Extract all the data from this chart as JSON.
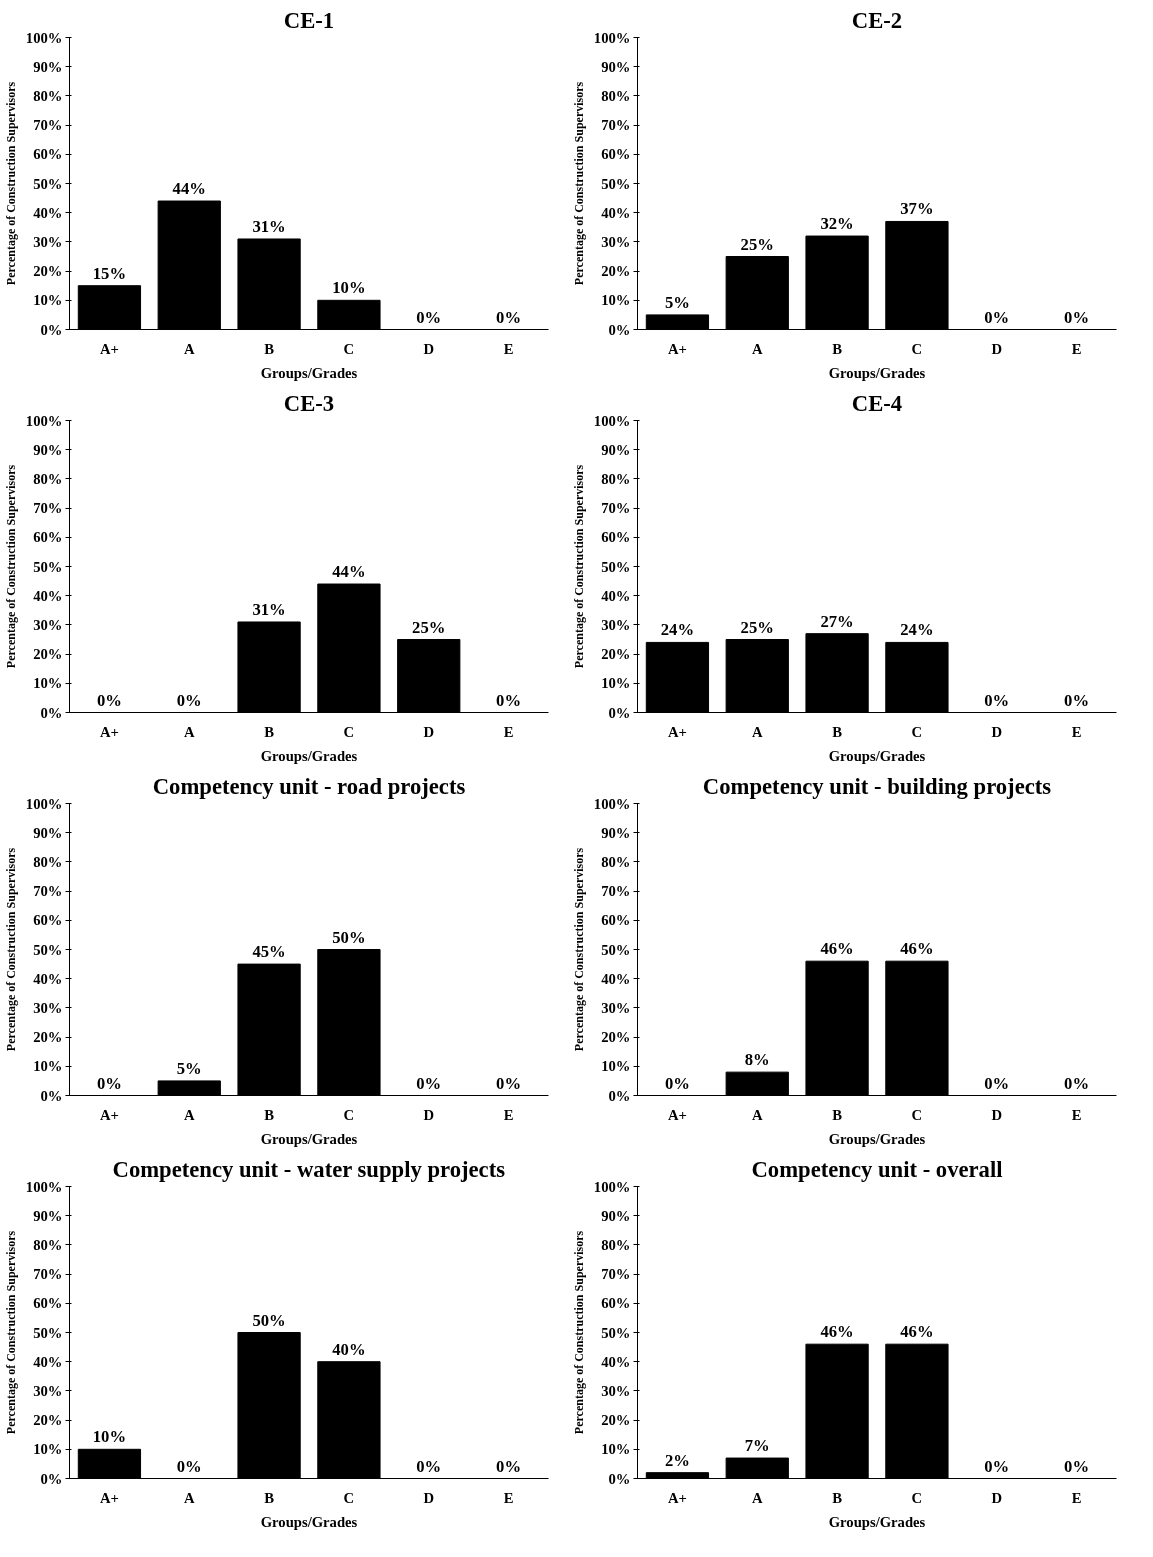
{
  "chart_data": [
    {
      "type": "bar",
      "title": "CE-1",
      "xlabel": "Groups/Grades",
      "ylabel": "Percentage of Construction Supervisors",
      "categories": [
        "A+",
        "A",
        "B",
        "C",
        "D",
        "E"
      ],
      "values": [
        15,
        44,
        31,
        10,
        0,
        0
      ],
      "value_labels": [
        "15%",
        "44%",
        "31%",
        "10%",
        "0%",
        "0%"
      ],
      "color": "#000000",
      "ylim": [
        0,
        100
      ],
      "yticks": [
        {
          "value": 0,
          "label": "0%"
        },
        {
          "value": 10,
          "label": "10%"
        },
        {
          "value": 20,
          "label": "20%"
        },
        {
          "value": 30,
          "label": "30%"
        },
        {
          "value": 40,
          "label": "40%"
        },
        {
          "value": 50,
          "label": "50%"
        },
        {
          "value": 60,
          "label": "60%"
        },
        {
          "value": 70,
          "label": "70%"
        },
        {
          "value": 80,
          "label": "80%"
        },
        {
          "value": 90,
          "label": "90%"
        },
        {
          "value": 100,
          "label": "100%"
        }
      ],
      "grid": false
    },
    {
      "type": "bar",
      "title": "CE-2",
      "xlabel": "Groups/Grades",
      "ylabel": "Percentage of Construction Supervisors",
      "categories": [
        "A+",
        "A",
        "B",
        "C",
        "D",
        "E"
      ],
      "values": [
        5,
        25,
        32,
        37,
        0,
        0
      ],
      "value_labels": [
        "5%",
        "25%",
        "32%",
        "37%",
        "0%",
        "0%"
      ],
      "color": "#000000",
      "ylim": [
        0,
        100
      ],
      "yticks": [
        {
          "value": 0,
          "label": "0%"
        },
        {
          "value": 10,
          "label": "10%"
        },
        {
          "value": 20,
          "label": "20%"
        },
        {
          "value": 30,
          "label": "30%"
        },
        {
          "value": 40,
          "label": "40%"
        },
        {
          "value": 50,
          "label": "50%"
        },
        {
          "value": 60,
          "label": "60%"
        },
        {
          "value": 70,
          "label": "70%"
        },
        {
          "value": 80,
          "label": "80%"
        },
        {
          "value": 90,
          "label": "90%"
        },
        {
          "value": 100,
          "label": "100%"
        }
      ],
      "grid": false
    },
    {
      "type": "bar",
      "title": "CE-3",
      "xlabel": "Groups/Grades",
      "ylabel": "Percentage of Construction Supervisors",
      "categories": [
        "A+",
        "A",
        "B",
        "C",
        "D",
        "E"
      ],
      "values": [
        0,
        0,
        31,
        44,
        25,
        0
      ],
      "value_labels": [
        "0%",
        "0%",
        "31%",
        "44%",
        "25%",
        "0%"
      ],
      "color": "#000000",
      "ylim": [
        0,
        100
      ],
      "yticks": [
        {
          "value": 0,
          "label": "0%"
        },
        {
          "value": 10,
          "label": "10%"
        },
        {
          "value": 20,
          "label": "20%"
        },
        {
          "value": 30,
          "label": "30%"
        },
        {
          "value": 40,
          "label": "40%"
        },
        {
          "value": 50,
          "label": "50%"
        },
        {
          "value": 60,
          "label": "60%"
        },
        {
          "value": 70,
          "label": "70%"
        },
        {
          "value": 80,
          "label": "80%"
        },
        {
          "value": 90,
          "label": "90%"
        },
        {
          "value": 100,
          "label": "100%"
        }
      ],
      "grid": false
    },
    {
      "type": "bar",
      "title": "CE-4",
      "xlabel": "Groups/Grades",
      "ylabel": "Percentage of Construction Supervisors",
      "categories": [
        "A+",
        "A",
        "B",
        "C",
        "D",
        "E"
      ],
      "values": [
        24,
        25,
        27,
        24,
        0,
        0
      ],
      "value_labels": [
        "24%",
        "25%",
        "27%",
        "24%",
        "0%",
        "0%"
      ],
      "color": "#000000",
      "ylim": [
        0,
        100
      ],
      "yticks": [
        {
          "value": 0,
          "label": "0%"
        },
        {
          "value": 10,
          "label": "10%"
        },
        {
          "value": 20,
          "label": "20%"
        },
        {
          "value": 30,
          "label": "30%"
        },
        {
          "value": 40,
          "label": "40%"
        },
        {
          "value": 50,
          "label": "50%"
        },
        {
          "value": 60,
          "label": "60%"
        },
        {
          "value": 70,
          "label": "70%"
        },
        {
          "value": 80,
          "label": "80%"
        },
        {
          "value": 90,
          "label": "90%"
        },
        {
          "value": 100,
          "label": "100%"
        }
      ],
      "grid": false
    },
    {
      "type": "bar",
      "title": "Competency unit - road projects",
      "xlabel": "Groups/Grades",
      "ylabel": "Percentage of Construction Supervisors",
      "categories": [
        "A+",
        "A",
        "B",
        "C",
        "D",
        "E"
      ],
      "values": [
        0,
        5,
        45,
        50,
        0,
        0
      ],
      "value_labels": [
        "0%",
        "5%",
        "45%",
        "50%",
        "0%",
        "0%"
      ],
      "color": "#000000",
      "ylim": [
        0,
        100
      ],
      "yticks": [
        {
          "value": 0,
          "label": "0%"
        },
        {
          "value": 10,
          "label": "10%"
        },
        {
          "value": 20,
          "label": "20%"
        },
        {
          "value": 30,
          "label": "30%"
        },
        {
          "value": 40,
          "label": "40%"
        },
        {
          "value": 50,
          "label": "50%"
        },
        {
          "value": 60,
          "label": "60%"
        },
        {
          "value": 70,
          "label": "70%"
        },
        {
          "value": 80,
          "label": "80%"
        },
        {
          "value": 90,
          "label": "90%"
        },
        {
          "value": 100,
          "label": "100%"
        }
      ],
      "grid": false
    },
    {
      "type": "bar",
      "title": "Competency unit - building projects",
      "xlabel": "Groups/Grades",
      "ylabel": "Percentage of Construction Supervisors",
      "categories": [
        "A+",
        "A",
        "B",
        "C",
        "D",
        "E"
      ],
      "values": [
        0,
        8,
        46,
        46,
        0,
        0
      ],
      "value_labels": [
        "0%",
        "8%",
        "46%",
        "46%",
        "0%",
        "0%"
      ],
      "color": "#000000",
      "ylim": [
        0,
        100
      ],
      "yticks": [
        {
          "value": 0,
          "label": "0%"
        },
        {
          "value": 10,
          "label": "10%"
        },
        {
          "value": 20,
          "label": "20%"
        },
        {
          "value": 30,
          "label": "30%"
        },
        {
          "value": 40,
          "label": "40%"
        },
        {
          "value": 50,
          "label": "50%"
        },
        {
          "value": 60,
          "label": "60%"
        },
        {
          "value": 70,
          "label": "70%"
        },
        {
          "value": 80,
          "label": "80%"
        },
        {
          "value": 90,
          "label": "90%"
        },
        {
          "value": 100,
          "label": "100%"
        }
      ],
      "grid": false
    },
    {
      "type": "bar",
      "title": "Competency unit - water supply projects",
      "xlabel": "Groups/Grades",
      "ylabel": "Percentage of Construction Supervisors",
      "categories": [
        "A+",
        "A",
        "B",
        "C",
        "D",
        "E"
      ],
      "values": [
        10,
        0,
        50,
        40,
        0,
        0
      ],
      "value_labels": [
        "10%",
        "0%",
        "50%",
        "40%",
        "0%",
        "0%"
      ],
      "color": "#000000",
      "ylim": [
        0,
        100
      ],
      "yticks": [
        {
          "value": 0,
          "label": "0%"
        },
        {
          "value": 10,
          "label": "10%"
        },
        {
          "value": 20,
          "label": "20%"
        },
        {
          "value": 30,
          "label": "30%"
        },
        {
          "value": 40,
          "label": "40%"
        },
        {
          "value": 50,
          "label": "50%"
        },
        {
          "value": 60,
          "label": "60%"
        },
        {
          "value": 70,
          "label": "70%"
        },
        {
          "value": 80,
          "label": "80%"
        },
        {
          "value": 90,
          "label": "90%"
        },
        {
          "value": 100,
          "label": "100%"
        }
      ],
      "grid": false
    },
    {
      "type": "bar",
      "title": "Competency unit - overall",
      "xlabel": "Groups/Grades",
      "ylabel": "Percentage of Construction Supervisors",
      "categories": [
        "A+",
        "A",
        "B",
        "C",
        "D",
        "E"
      ],
      "values": [
        2,
        7,
        46,
        46,
        0,
        0
      ],
      "value_labels": [
        "2%",
        "7%",
        "46%",
        "46%",
        "0%",
        "0%"
      ],
      "color": "#000000",
      "ylim": [
        0,
        100
      ],
      "yticks": [
        {
          "value": 0,
          "label": "0%"
        },
        {
          "value": 10,
          "label": "10%"
        },
        {
          "value": 20,
          "label": "20%"
        },
        {
          "value": 30,
          "label": "30%"
        },
        {
          "value": 40,
          "label": "40%"
        },
        {
          "value": 50,
          "label": "50%"
        },
        {
          "value": 60,
          "label": "60%"
        },
        {
          "value": 70,
          "label": "70%"
        },
        {
          "value": 80,
          "label": "80%"
        },
        {
          "value": 90,
          "label": "90%"
        },
        {
          "value": 100,
          "label": "100%"
        }
      ],
      "grid": false
    }
  ]
}
